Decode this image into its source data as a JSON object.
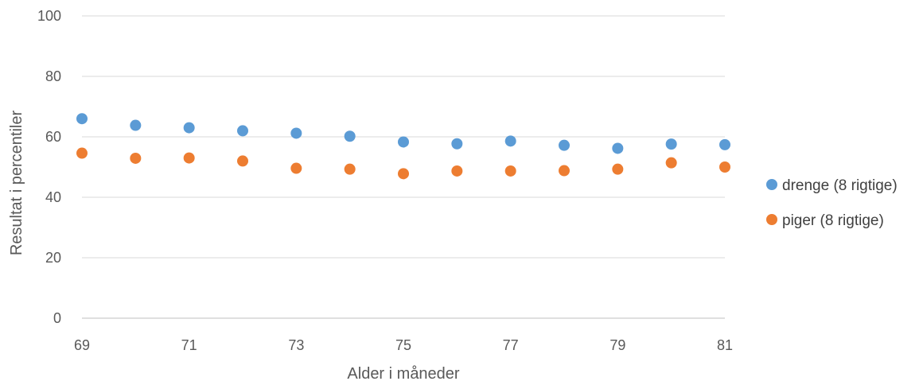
{
  "chart_data": {
    "type": "scatter",
    "title": "",
    "xlabel": "Alder i måneder",
    "ylabel": "Resultat i percentiler",
    "xlim": [
      69,
      81
    ],
    "ylim": [
      0,
      100
    ],
    "x_ticks": [
      "69",
      "71",
      "73",
      "75",
      "77",
      "79",
      "81"
    ],
    "y_ticks": [
      "0",
      "20",
      "40",
      "60",
      "80",
      "100"
    ],
    "grid": "horizontal",
    "legend_position": "right",
    "series": [
      {
        "name": "drenge (8 rigtige)",
        "color": "#5B9BD5",
        "x": [
          69,
          70,
          71,
          72,
          73,
          74,
          75,
          76,
          77,
          78,
          79,
          80,
          81
        ],
        "y": [
          66,
          63.8,
          63,
          62,
          61.2,
          60.2,
          58.3,
          57.7,
          58.6,
          57.2,
          56.2,
          57.6,
          57.4
        ]
      },
      {
        "name": "piger (8 rigtige)",
        "color": "#ED7D31",
        "x": [
          69,
          70,
          71,
          72,
          73,
          74,
          75,
          76,
          77,
          78,
          79,
          80,
          81
        ],
        "y": [
          54.6,
          52.9,
          53,
          52,
          49.6,
          49.3,
          47.8,
          48.7,
          48.7,
          48.8,
          49.3,
          51.4,
          50
        ]
      }
    ]
  }
}
